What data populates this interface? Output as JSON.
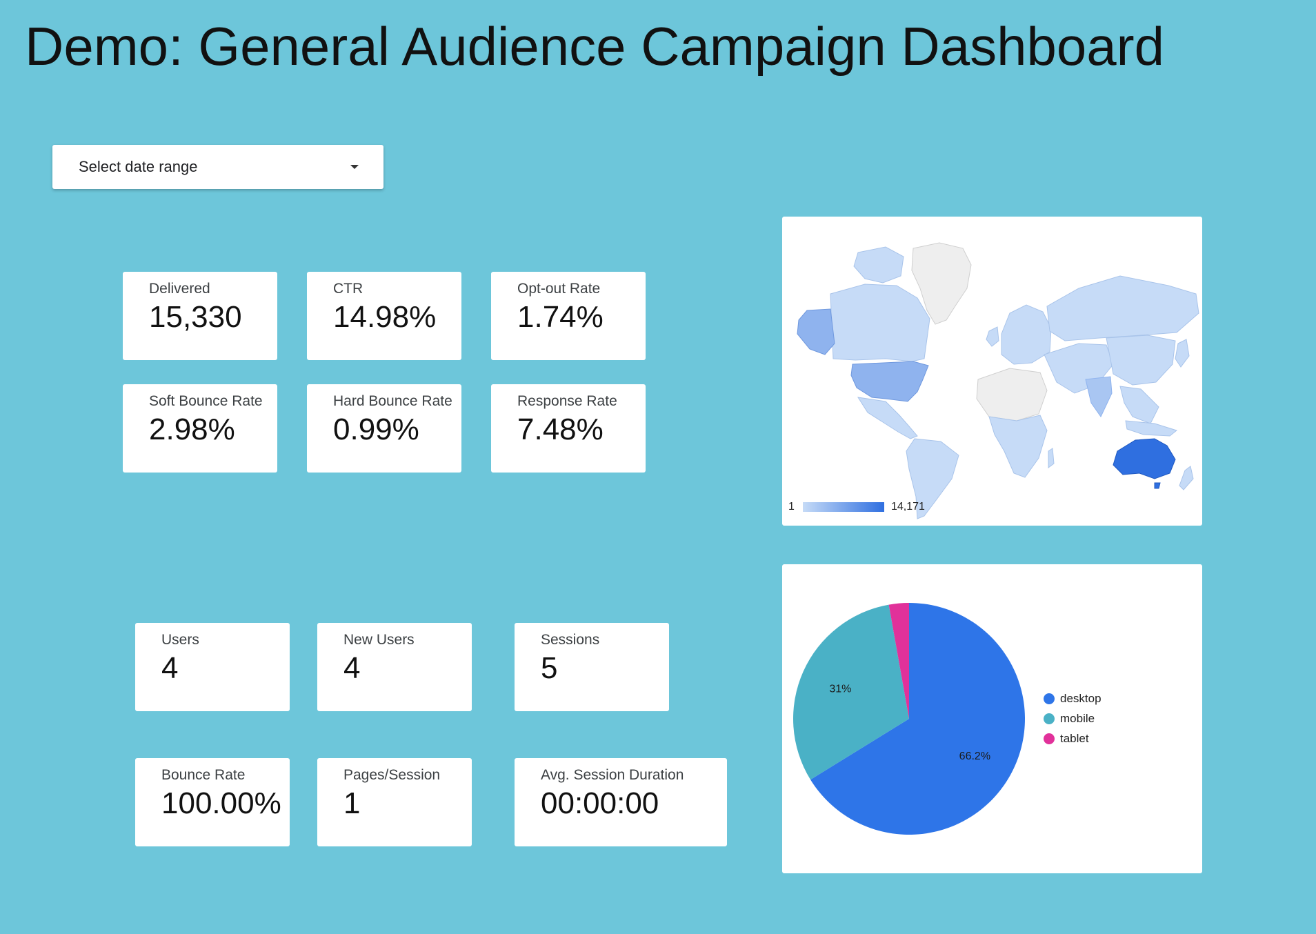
{
  "header": {
    "title": "Demo: General Audience Campaign Dashboard"
  },
  "date_range": {
    "label": "Select date range",
    "icon": "dropdown-caret-icon"
  },
  "email_metrics": [
    {
      "id": "delivered",
      "label": "Delivered",
      "value": "15,330"
    },
    {
      "id": "ctr",
      "label": "CTR",
      "value": "14.98%"
    },
    {
      "id": "opt-out-rate",
      "label": "Opt-out Rate",
      "value": "1.74%"
    },
    {
      "id": "soft-bounce-rate",
      "label": "Soft Bounce Rate",
      "value": "2.98%"
    },
    {
      "id": "hard-bounce-rate",
      "label": "Hard Bounce Rate",
      "value": "0.99%"
    },
    {
      "id": "response-rate",
      "label": "Response Rate",
      "value": "7.48%"
    }
  ],
  "web_metrics": [
    {
      "id": "users",
      "label": "Users",
      "value": "4"
    },
    {
      "id": "new-users",
      "label": "New Users",
      "value": "4"
    },
    {
      "id": "sessions",
      "label": "Sessions",
      "value": "5"
    },
    {
      "id": "bounce-rate",
      "label": "Bounce Rate",
      "value": "100.00%"
    },
    {
      "id": "pages-session",
      "label": "Pages/Session",
      "value": "1"
    },
    {
      "id": "avg-session-duration",
      "label": "Avg. Session Duration",
      "value": "00:00:00"
    }
  ],
  "geo_map": {
    "legend_min": "1",
    "legend_max": "14,171",
    "color_low": "#c6dbf7",
    "color_high": "#2f6fe0",
    "color_nodata": "#eeeeee"
  },
  "chart_data": {
    "type": "pie",
    "categories": [
      "desktop",
      "mobile",
      "tablet"
    ],
    "values": [
      66.2,
      31.0,
      2.8
    ],
    "data_labels": [
      "66.2%",
      "31%",
      ""
    ],
    "colors": [
      "#2e75e8",
      "#4ab1c6",
      "#e1319a"
    ],
    "legend_position": "right"
  }
}
